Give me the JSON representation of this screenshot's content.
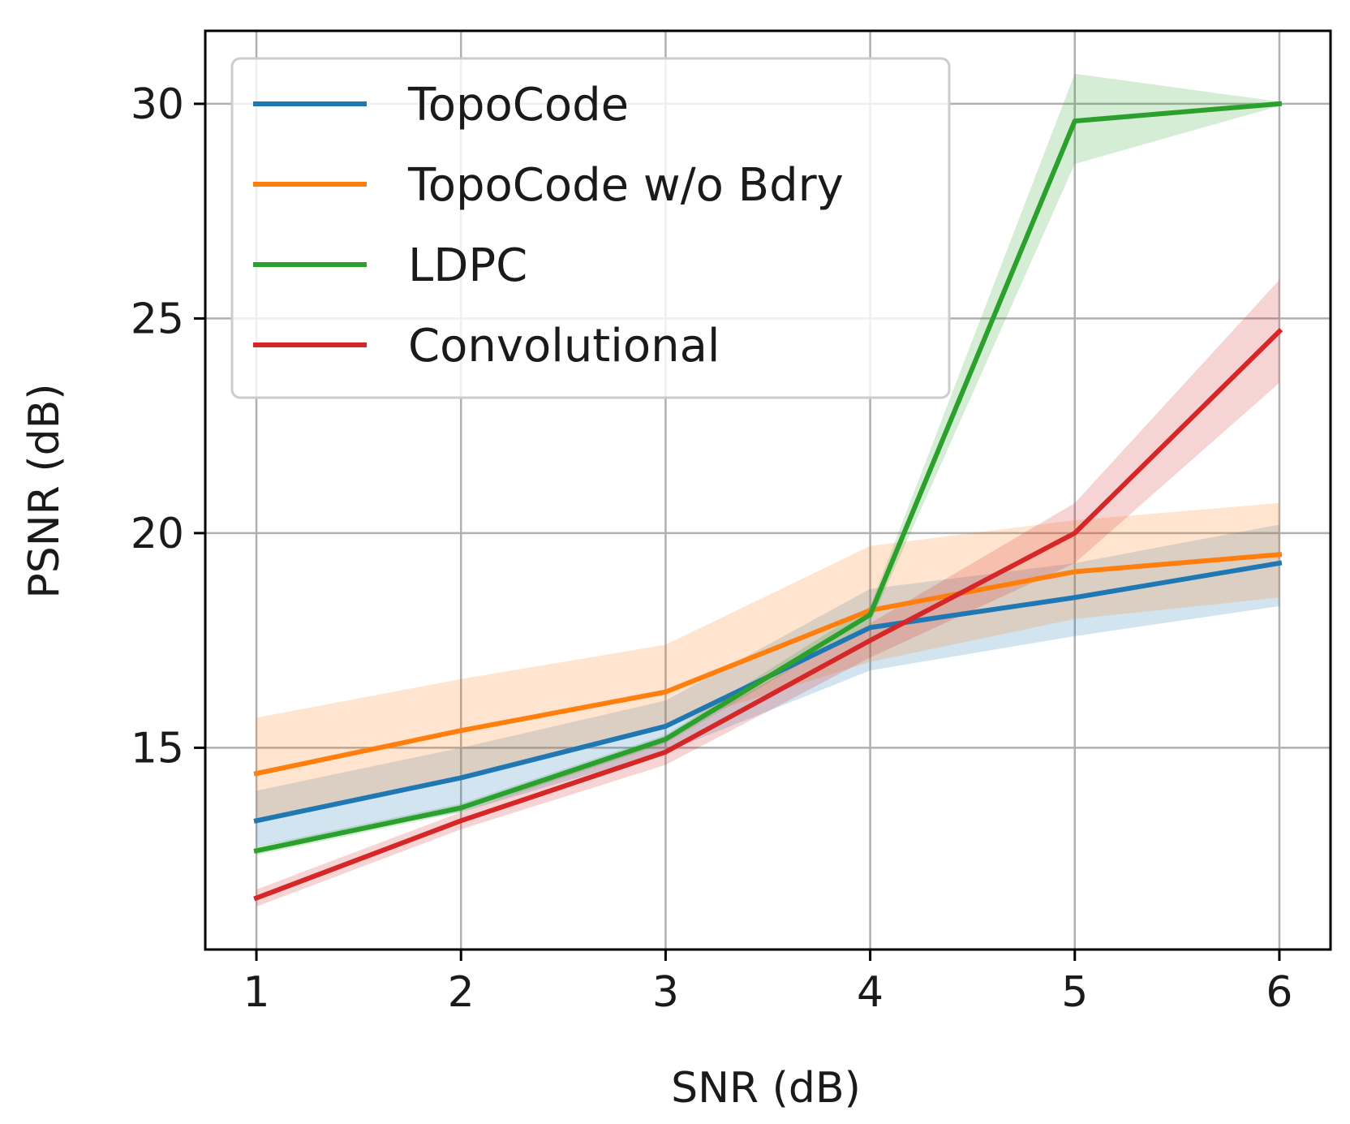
{
  "chart_data": {
    "type": "line",
    "title": "",
    "xlabel": "SNR (dB)",
    "ylabel": "PSNR (dB)",
    "x": [
      1,
      2,
      3,
      4,
      5,
      6
    ],
    "xlim": [
      0.75,
      6.25
    ],
    "ylim": [
      10.3,
      31.7
    ],
    "xticks": [
      1,
      2,
      3,
      4,
      5,
      6
    ],
    "yticks": [
      15,
      20,
      25,
      30
    ],
    "grid": true,
    "legend_position": "top-left",
    "series": [
      {
        "name": "TopoCode",
        "color": "#1f77b4",
        "values": [
          13.3,
          14.3,
          15.5,
          17.8,
          18.5,
          19.3
        ],
        "lower": [
          12.7,
          13.5,
          14.9,
          16.8,
          17.6,
          18.3
        ],
        "upper": [
          14.0,
          15.0,
          16.1,
          18.7,
          19.3,
          20.2
        ]
      },
      {
        "name": "TopoCode w/o Bdry",
        "color": "#ff7f0e",
        "values": [
          14.4,
          15.4,
          16.3,
          18.2,
          19.1,
          19.5
        ],
        "lower": [
          13.3,
          14.3,
          15.5,
          17.0,
          18.0,
          18.5
        ],
        "upper": [
          15.7,
          16.6,
          17.4,
          19.7,
          20.3,
          20.7
        ]
      },
      {
        "name": "LDPC",
        "color": "#2ca02c",
        "values": [
          12.6,
          13.6,
          15.2,
          18.1,
          29.6,
          30.0
        ],
        "lower": [
          12.5,
          13.5,
          15.1,
          17.9,
          28.6,
          29.95
        ],
        "upper": [
          12.7,
          13.7,
          15.3,
          18.3,
          30.7,
          30.05
        ]
      },
      {
        "name": "Convolutional",
        "color": "#d62728",
        "values": [
          11.5,
          13.3,
          14.9,
          17.5,
          20.0,
          24.7
        ],
        "lower": [
          11.3,
          13.1,
          14.6,
          17.1,
          19.3,
          23.5
        ],
        "upper": [
          11.7,
          13.5,
          15.2,
          17.9,
          20.7,
          25.9
        ]
      }
    ]
  }
}
